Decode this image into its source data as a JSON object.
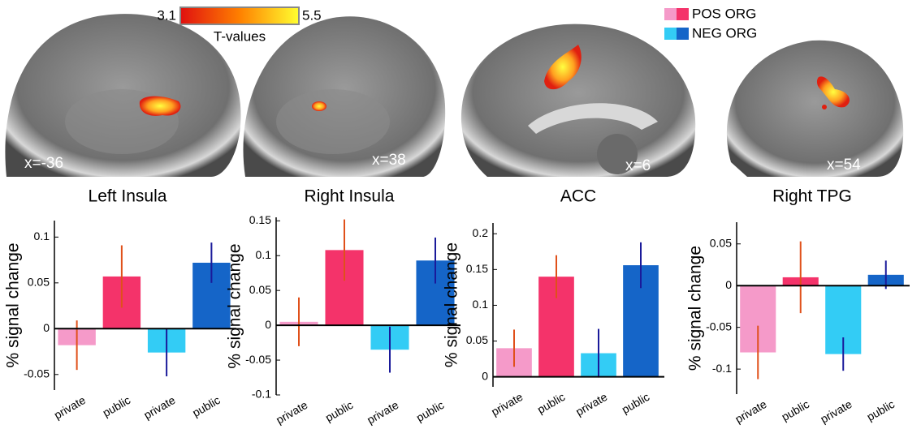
{
  "colorbar": {
    "min": 3.1,
    "max": 5.5,
    "label": "T-values",
    "colors": [
      "#e01010",
      "#ff8000",
      "#ffff30"
    ]
  },
  "legend": [
    {
      "label": "POS ORG",
      "colors": [
        "#f59ac9",
        "#f4336a"
      ]
    },
    {
      "label": "NEG ORG",
      "colors": [
        "#33ccf5",
        "#1565c8"
      ]
    }
  ],
  "images": [
    {
      "coord": "x=-36"
    },
    {
      "coord": "x=38"
    },
    {
      "coord": "x=6"
    },
    {
      "coord": "x=54"
    }
  ],
  "chart_data": [
    {
      "type": "bar",
      "title": "Left Insula",
      "ylabel": "% signal change",
      "categories": [
        "private",
        "public",
        "private",
        "public"
      ],
      "values": [
        -0.018,
        0.057,
        -0.026,
        0.072
      ],
      "errors": [
        0.027,
        0.034,
        0.026,
        0.022
      ],
      "colors": [
        "#f59ac9",
        "#f4336a",
        "#33ccf5",
        "#1565c8"
      ],
      "error_colors": [
        "#e0501a",
        "#e0501a",
        "#1a1a9a",
        "#1a1a9a"
      ],
      "ylim": [
        -0.067,
        0.118
      ],
      "yticks": [
        -0.05,
        0,
        0.05,
        0.1
      ]
    },
    {
      "type": "bar",
      "title": "Right Insula",
      "ylabel": "% signal change",
      "categories": [
        "private",
        "public",
        "private",
        "public"
      ],
      "values": [
        0.005,
        0.108,
        -0.035,
        0.093
      ],
      "errors": [
        0.035,
        0.044,
        0.033,
        0.033
      ],
      "colors": [
        "#f59ac9",
        "#f4336a",
        "#33ccf5",
        "#1565c8"
      ],
      "error_colors": [
        "#e0501a",
        "#e0501a",
        "#1a1a9a",
        "#1a1a9a"
      ],
      "ylim": [
        -0.1,
        0.155
      ],
      "yticks": [
        -0.1,
        -0.05,
        0,
        0.05,
        0.1,
        0.15
      ]
    },
    {
      "type": "bar",
      "title": "ACC",
      "ylabel": "% signal change",
      "categories": [
        "private",
        "public",
        "private",
        "public"
      ],
      "values": [
        0.04,
        0.14,
        0.033,
        0.156
      ],
      "errors": [
        0.026,
        0.03,
        0.034,
        0.032
      ],
      "colors": [
        "#f59ac9",
        "#f4336a",
        "#33ccf5",
        "#1565c8"
      ],
      "error_colors": [
        "#e0501a",
        "#e0501a",
        "#1a1a9a",
        "#1a1a9a"
      ],
      "ylim": [
        -0.014,
        0.215
      ],
      "yticks": [
        0,
        0.05,
        0.1,
        0.15,
        0.2
      ]
    },
    {
      "type": "bar",
      "title": "Right TPG",
      "ylabel": "% signal change",
      "categories": [
        "private",
        "public",
        "private",
        "public"
      ],
      "values": [
        -0.08,
        0.01,
        -0.082,
        0.013
      ],
      "errors": [
        0.032,
        0.043,
        0.02,
        0.017
      ],
      "colors": [
        "#f59ac9",
        "#f4336a",
        "#33ccf5",
        "#1565c8"
      ],
      "error_colors": [
        "#e0501a",
        "#e0501a",
        "#1a1a9a",
        "#1a1a9a"
      ],
      "ylim": [
        -0.13,
        0.076
      ],
      "yticks": [
        -0.1,
        -0.05,
        0,
        0.05
      ]
    }
  ]
}
